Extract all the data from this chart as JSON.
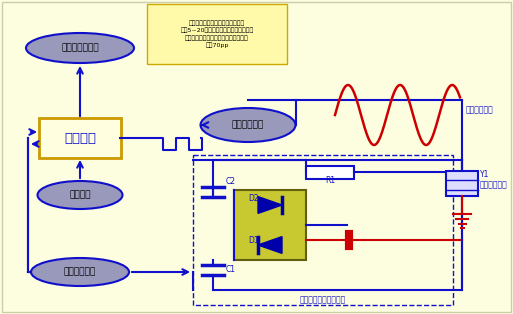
{
  "bg_color": "#FDFDE0",
  "blue": "#1010CC",
  "dark_blue": "#0000AA",
  "red": "#CC0000",
  "gold": "#CC9900",
  "light_gray": "#9999BB",
  "diode_fill": "#C8C830",
  "diode_border": "#606010",
  "ann_bg": "#FFFAAA",
  "ann_border": "#CCAA00",
  "ctrl_fill": "#FFFFE0",
  "label_control": "控制中心",
  "label_display": "显示或输出电路",
  "label_power": "电源电路",
  "label_receive": "接收放大电路",
  "label_pulse": "脉冲放大电路",
  "label_transducer": "超声波换能器",
  "label_circuit": "收发一体探头隔离电路",
  "label_high_pulse": "产生高压脉冲",
  "label_R1": "R1",
  "label_C1": "C1",
  "label_C2": "C2",
  "label_D1": "D1",
  "label_D2": "D2",
  "label_Y1": "Y1",
  "ann_text_line1": "根据换能器的频率和实际工作需求",
  "ann_text_line2": "产生5~20个周期的脉冲信号，信号的频",
  "ann_text_line3": "率必须与换能器的频率相符，信号的幅",
  "ann_text_line4": "度为70pp"
}
